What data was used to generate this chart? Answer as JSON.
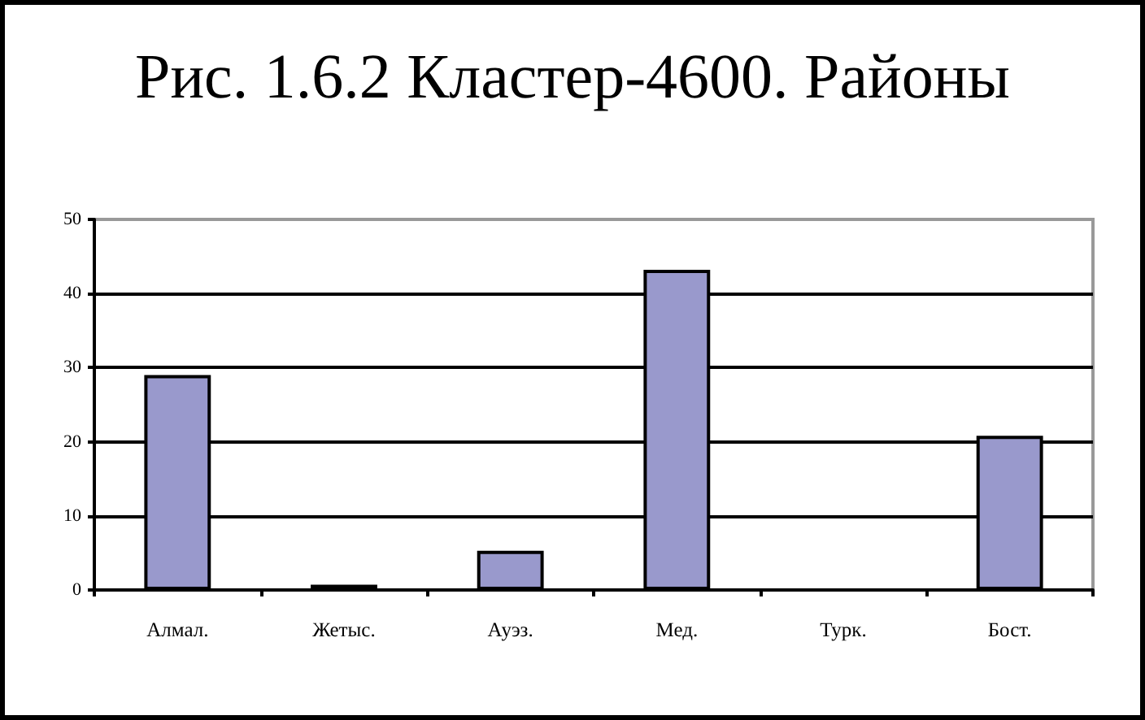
{
  "chart_data": {
    "type": "bar",
    "title": "Рис. 1.6.2 Кластер-4600. Районы",
    "categories": [
      "Алмал.",
      "Жетыс.",
      "Ауэз.",
      "Мед.",
      "Турк.",
      "Бост."
    ],
    "values": [
      29,
      0.7,
      5.3,
      43.2,
      0,
      20.8
    ],
    "color": "#9999cc",
    "ylim": [
      0,
      50
    ],
    "yticks": [
      0,
      10,
      20,
      30,
      40,
      50
    ],
    "grid": "y"
  }
}
